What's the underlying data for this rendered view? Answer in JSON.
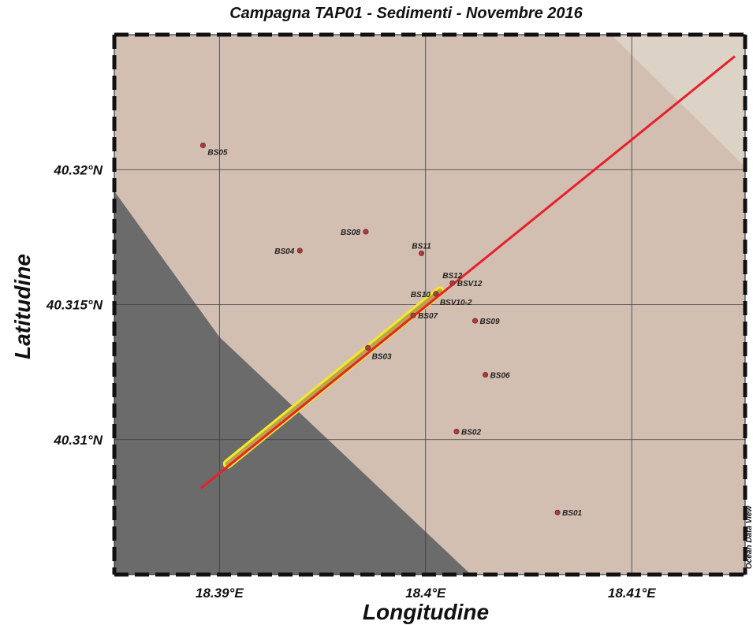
{
  "title": "Campagna TAP01  - Sedimenti -  Novembre 2016",
  "axes": {
    "x_label": "Longitudine",
    "y_label": "Latitudine",
    "x_ticks": [
      {
        "value": 18.39,
        "label": "18.39°E"
      },
      {
        "value": 18.4,
        "label": "18.4°E"
      },
      {
        "value": 18.41,
        "label": "18.41°E"
      }
    ],
    "y_ticks": [
      {
        "value": 40.32,
        "label": "40.32°N"
      },
      {
        "value": 40.315,
        "label": "40.315°N"
      },
      {
        "value": 40.31,
        "label": "40.31°N"
      }
    ],
    "x_range": [
      18.3849,
      18.4155
    ],
    "y_range": [
      40.305,
      40.325
    ]
  },
  "credit": "Ocean Data View",
  "colors": {
    "sea": "#d2bfb2",
    "sea_light": "#ddd2c6",
    "land": "#6b6b6b",
    "pipeline": "#e8202a",
    "corridor": "#f4e829",
    "station": "#b03a3a",
    "grid": "#3a3a3a"
  },
  "stations": [
    {
      "name": "BS05",
      "lon": 18.3892,
      "lat": 40.3209,
      "label_pos": "right"
    },
    {
      "name": "BS08",
      "lon": 18.3971,
      "lat": 40.3177,
      "label_pos": "left"
    },
    {
      "name": "BS04",
      "lon": 18.3939,
      "lat": 40.317,
      "label_pos": "left"
    },
    {
      "name": "BS11",
      "lon": 18.3998,
      "lat": 40.3169,
      "label_pos": "above"
    },
    {
      "name": "BS12",
      "lon": 18.4013,
      "lat": 40.3158,
      "label_pos": "above"
    },
    {
      "name": "BSV12",
      "lon": 18.4013,
      "lat": 40.3158,
      "label_pos": "right"
    },
    {
      "name": "BS10",
      "lon": 18.4005,
      "lat": 40.3154,
      "label_pos": "left"
    },
    {
      "name": "BSV10-2",
      "lon": 18.4005,
      "lat": 40.3154,
      "label_pos": "below-right"
    },
    {
      "name": "BS07",
      "lon": 18.3994,
      "lat": 40.3146,
      "label_pos": "right"
    },
    {
      "name": "BS09",
      "lon": 18.4024,
      "lat": 40.3144,
      "label_pos": "right"
    },
    {
      "name": "BS03",
      "lon": 18.3972,
      "lat": 40.3134,
      "label_pos": "below-right"
    },
    {
      "name": "BS06",
      "lon": 18.4029,
      "lat": 40.3124,
      "label_pos": "right"
    },
    {
      "name": "BS02",
      "lon": 18.4015,
      "lat": 40.3103,
      "label_pos": "right"
    },
    {
      "name": "BS01",
      "lon": 18.4064,
      "lat": 40.3073,
      "label_pos": "right"
    }
  ],
  "pipeline": {
    "start": {
      "lon": 18.3891,
      "lat": 40.3082
    },
    "end": {
      "lon": 18.415,
      "lat": 40.3242
    }
  },
  "corridor": {
    "start": {
      "lon": 18.3904,
      "lat": 40.3091
    },
    "end": {
      "lon": 18.4007,
      "lat": 40.3155
    }
  },
  "land_polygon": [
    {
      "lon": 18.3849,
      "lat": 40.3192
    },
    {
      "lon": 18.39,
      "lat": 40.3138
    },
    {
      "lon": 18.4022,
      "lat": 40.305
    },
    {
      "lon": 18.3849,
      "lat": 40.305
    }
  ],
  "light_sea_polygon": [
    {
      "lon": 18.409,
      "lat": 40.325
    },
    {
      "lon": 18.4155,
      "lat": 40.325
    },
    {
      "lon": 18.4155,
      "lat": 40.3201
    }
  ]
}
